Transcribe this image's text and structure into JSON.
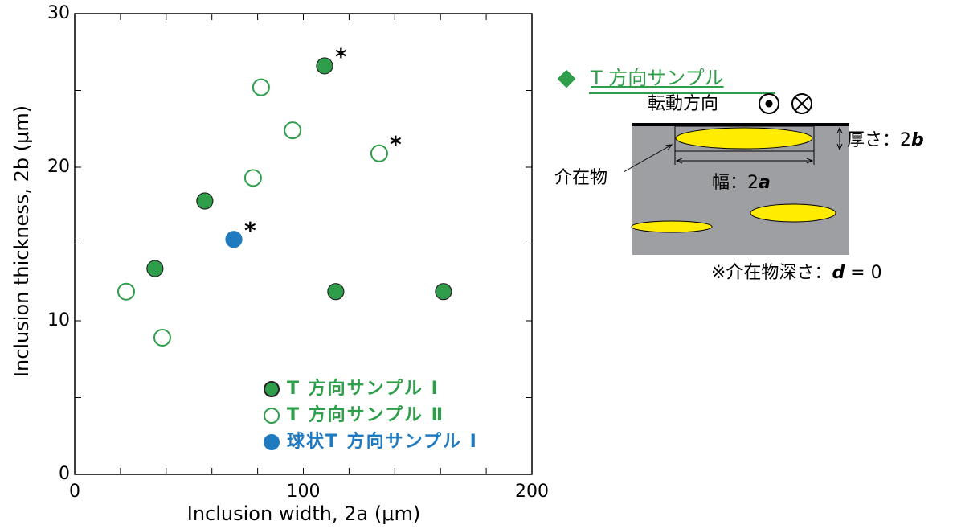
{
  "chart_data": {
    "type": "scatter",
    "xlabel": "Inclusion width, 2a (μm)",
    "ylabel": "Inclusion thickness, 2b (μm)",
    "xlim": [
      0,
      200
    ],
    "ylim": [
      0,
      30
    ],
    "xticks": [
      0,
      100,
      200
    ],
    "yticks": [
      0,
      10,
      20,
      30
    ],
    "xminorticks": [
      20,
      40,
      60,
      80,
      120,
      140,
      160,
      180
    ],
    "yminorticks": [
      5,
      15,
      25
    ],
    "series": [
      {
        "name": "T 方向サンプル Ⅰ",
        "color": "#2e9e4a",
        "filled": true,
        "x": [
          109.3,
          56.9,
          35.1,
          114.2,
          161.3
        ],
        "y": [
          26.6,
          17.8,
          13.4,
          11.9,
          11.9
        ]
      },
      {
        "name": "T 方向サンプル Ⅱ",
        "color": "#2e9e4a",
        "filled": false,
        "x": [
          81.5,
          95.3,
          133.2,
          78.0,
          22.5,
          38.3
        ],
        "y": [
          25.2,
          22.4,
          20.9,
          19.3,
          11.9,
          8.9
        ]
      },
      {
        "name": "球状T 方向サンプル Ⅰ",
        "color": "#1f7ac0",
        "filled": true,
        "x": [
          69.6
        ],
        "y": [
          15.3
        ]
      }
    ],
    "annotations": [
      {
        "text": "*",
        "series": 0,
        "index": 0
      },
      {
        "text": "*",
        "series": 1,
        "index": 2
      },
      {
        "text": "*",
        "series": 2,
        "index": 0
      }
    ]
  },
  "diagram": {
    "heading": "T 方向サンプル",
    "rolling_direction": "転動方向",
    "thickness": {
      "label": "厚さ：2",
      "var": "b"
    },
    "inclusion": "介在物",
    "width": {
      "label": "幅：2",
      "var": "a"
    },
    "depth": {
      "label": "※介在物深さ：",
      "var": "d",
      "rest": " = 0"
    }
  }
}
